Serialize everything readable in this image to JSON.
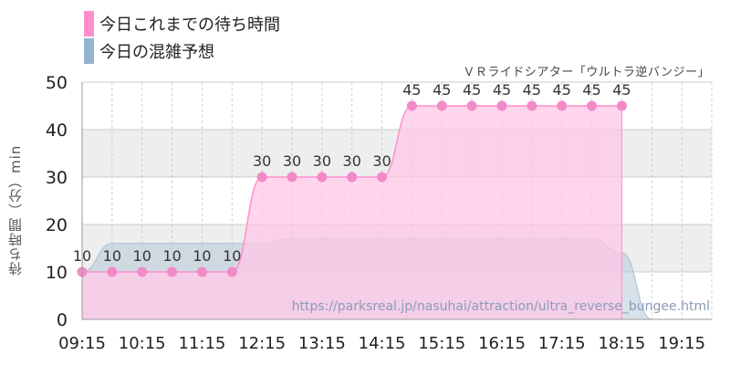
{
  "legend": {
    "items": [
      {
        "label": "今日これまでの待ち時間",
        "color": "#ff8fca"
      },
      {
        "label": "今日の混雑予想",
        "color": "#94b3d1"
      }
    ]
  },
  "subtitle": "ＶＲライドシアター「ウルトラ逆バンジー」",
  "credit": "https://parksreal.jp/nasuhai/attraction/ultra_reverse_bungee.html",
  "colors": {
    "actual_fill": "#ffc7e7",
    "actual_line": "#ff8fca",
    "actual_marker": "#f28ac8",
    "forecast_fill": "#b6c9d9",
    "band": "#eeeeee",
    "grid": "#cccccc"
  },
  "chart_data": {
    "type": "area",
    "title": "",
    "xlabel": "",
    "ylabel": "待ち時間（分）min",
    "ylim": [
      0,
      50
    ],
    "yticks": [
      0,
      10,
      20,
      30,
      40,
      50
    ],
    "xlim": [
      "09:15",
      "19:45"
    ],
    "xticks": [
      "09:15",
      "10:15",
      "11:15",
      "12:15",
      "13:15",
      "14:15",
      "15:15",
      "16:15",
      "17:15",
      "18:15",
      "19:15"
    ],
    "grid": true,
    "series": [
      {
        "name": "今日これまでの待ち時間",
        "x": [
          "09:15",
          "09:45",
          "10:15",
          "10:45",
          "11:15",
          "11:45",
          "12:15",
          "12:45",
          "13:15",
          "13:45",
          "14:15",
          "14:45",
          "15:15",
          "15:45",
          "16:15",
          "16:45",
          "17:15",
          "17:45",
          "18:15"
        ],
        "values": [
          10,
          10,
          10,
          10,
          10,
          10,
          30,
          30,
          30,
          30,
          30,
          45,
          45,
          45,
          45,
          45,
          45,
          45,
          45
        ]
      },
      {
        "name": "今日の混雑予想",
        "x": [
          "09:15",
          "09:45",
          "10:15",
          "10:45",
          "11:15",
          "11:45",
          "12:15",
          "12:45",
          "13:15",
          "13:45",
          "14:15",
          "14:45",
          "15:15",
          "15:45",
          "16:15",
          "16:45",
          "17:15",
          "17:45",
          "18:15",
          "18:45",
          "19:15",
          "19:45"
        ],
        "values": [
          10,
          16,
          16,
          16,
          16,
          16,
          16,
          17,
          17,
          17,
          17,
          17,
          17,
          17,
          17,
          17,
          17,
          17,
          14,
          0,
          0,
          0
        ]
      }
    ]
  }
}
